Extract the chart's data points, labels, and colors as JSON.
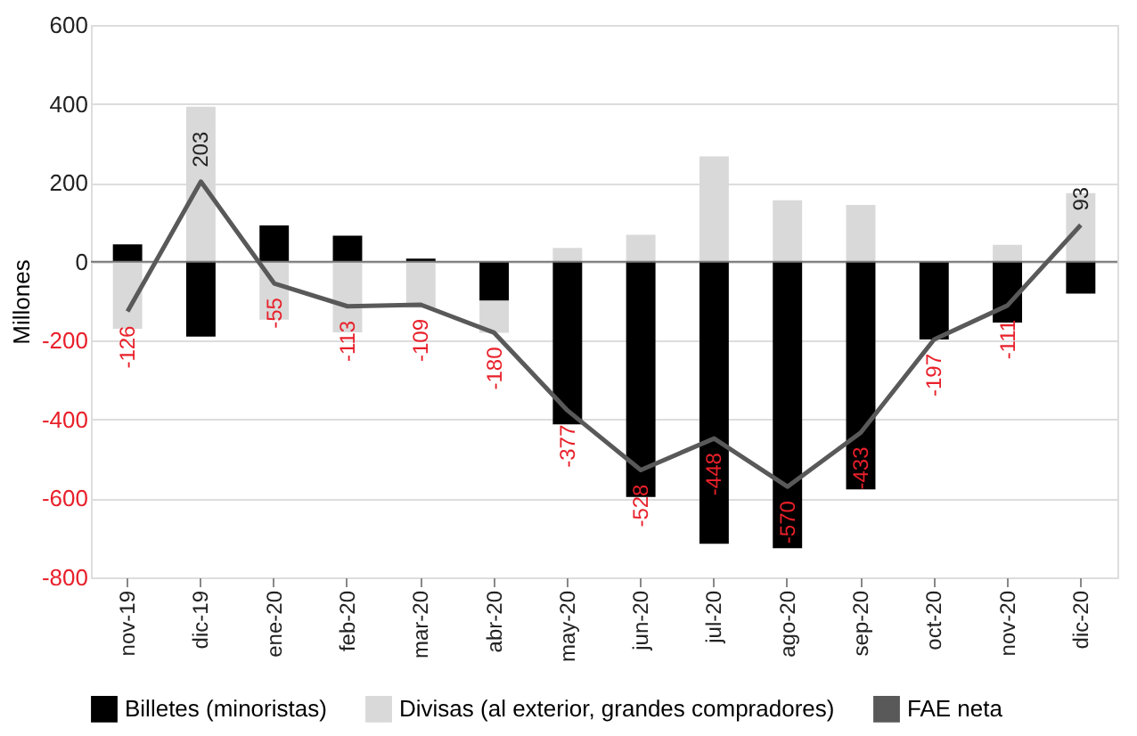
{
  "chart_data": {
    "type": "bar",
    "stacked": true,
    "ylabel": "Millones",
    "categories": [
      "nov-19",
      "dic-19",
      "ene-20",
      "feb-20",
      "mar-20",
      "abr-20",
      "may-20",
      "jun-20",
      "jul-20",
      "ago-20",
      "sep-20",
      "oct-20",
      "nov-20",
      "dic-20"
    ],
    "series": [
      {
        "name": "Billetes (minoristas)",
        "color": "#000000",
        "values": [
          44,
          -190,
          92,
          66,
          8,
          -99,
          -412,
          -596,
          -715,
          -726,
          -577,
          -197,
          -154,
          -81
        ]
      },
      {
        "name": "Divisas (al exterior, grandes compradores)",
        "color": "#d9d9d9",
        "values": [
          -170,
          393,
          -147,
          -179,
          -117,
          -81,
          35,
          68,
          267,
          156,
          144,
          0,
          43,
          174
        ]
      },
      {
        "name": "FAE neta",
        "type": "line",
        "color": "#595959",
        "values": [
          -126,
          203,
          -55,
          -113,
          -109,
          -180,
          -377,
          -528,
          -448,
          -570,
          -433,
          -197,
          -111,
          93
        ],
        "value_labels": [
          "-126",
          "203",
          "-55",
          "-113",
          "-109",
          "-180",
          "-377",
          "-528",
          "-448",
          "-570",
          "-433",
          "-197",
          "-111",
          "93"
        ]
      }
    ],
    "ylim": [
      -800,
      600
    ],
    "yticks": [
      -800,
      -600,
      -400,
      -200,
      0,
      200,
      400,
      600
    ],
    "grid": "y",
    "legend": "bottom",
    "marker": "none"
  }
}
